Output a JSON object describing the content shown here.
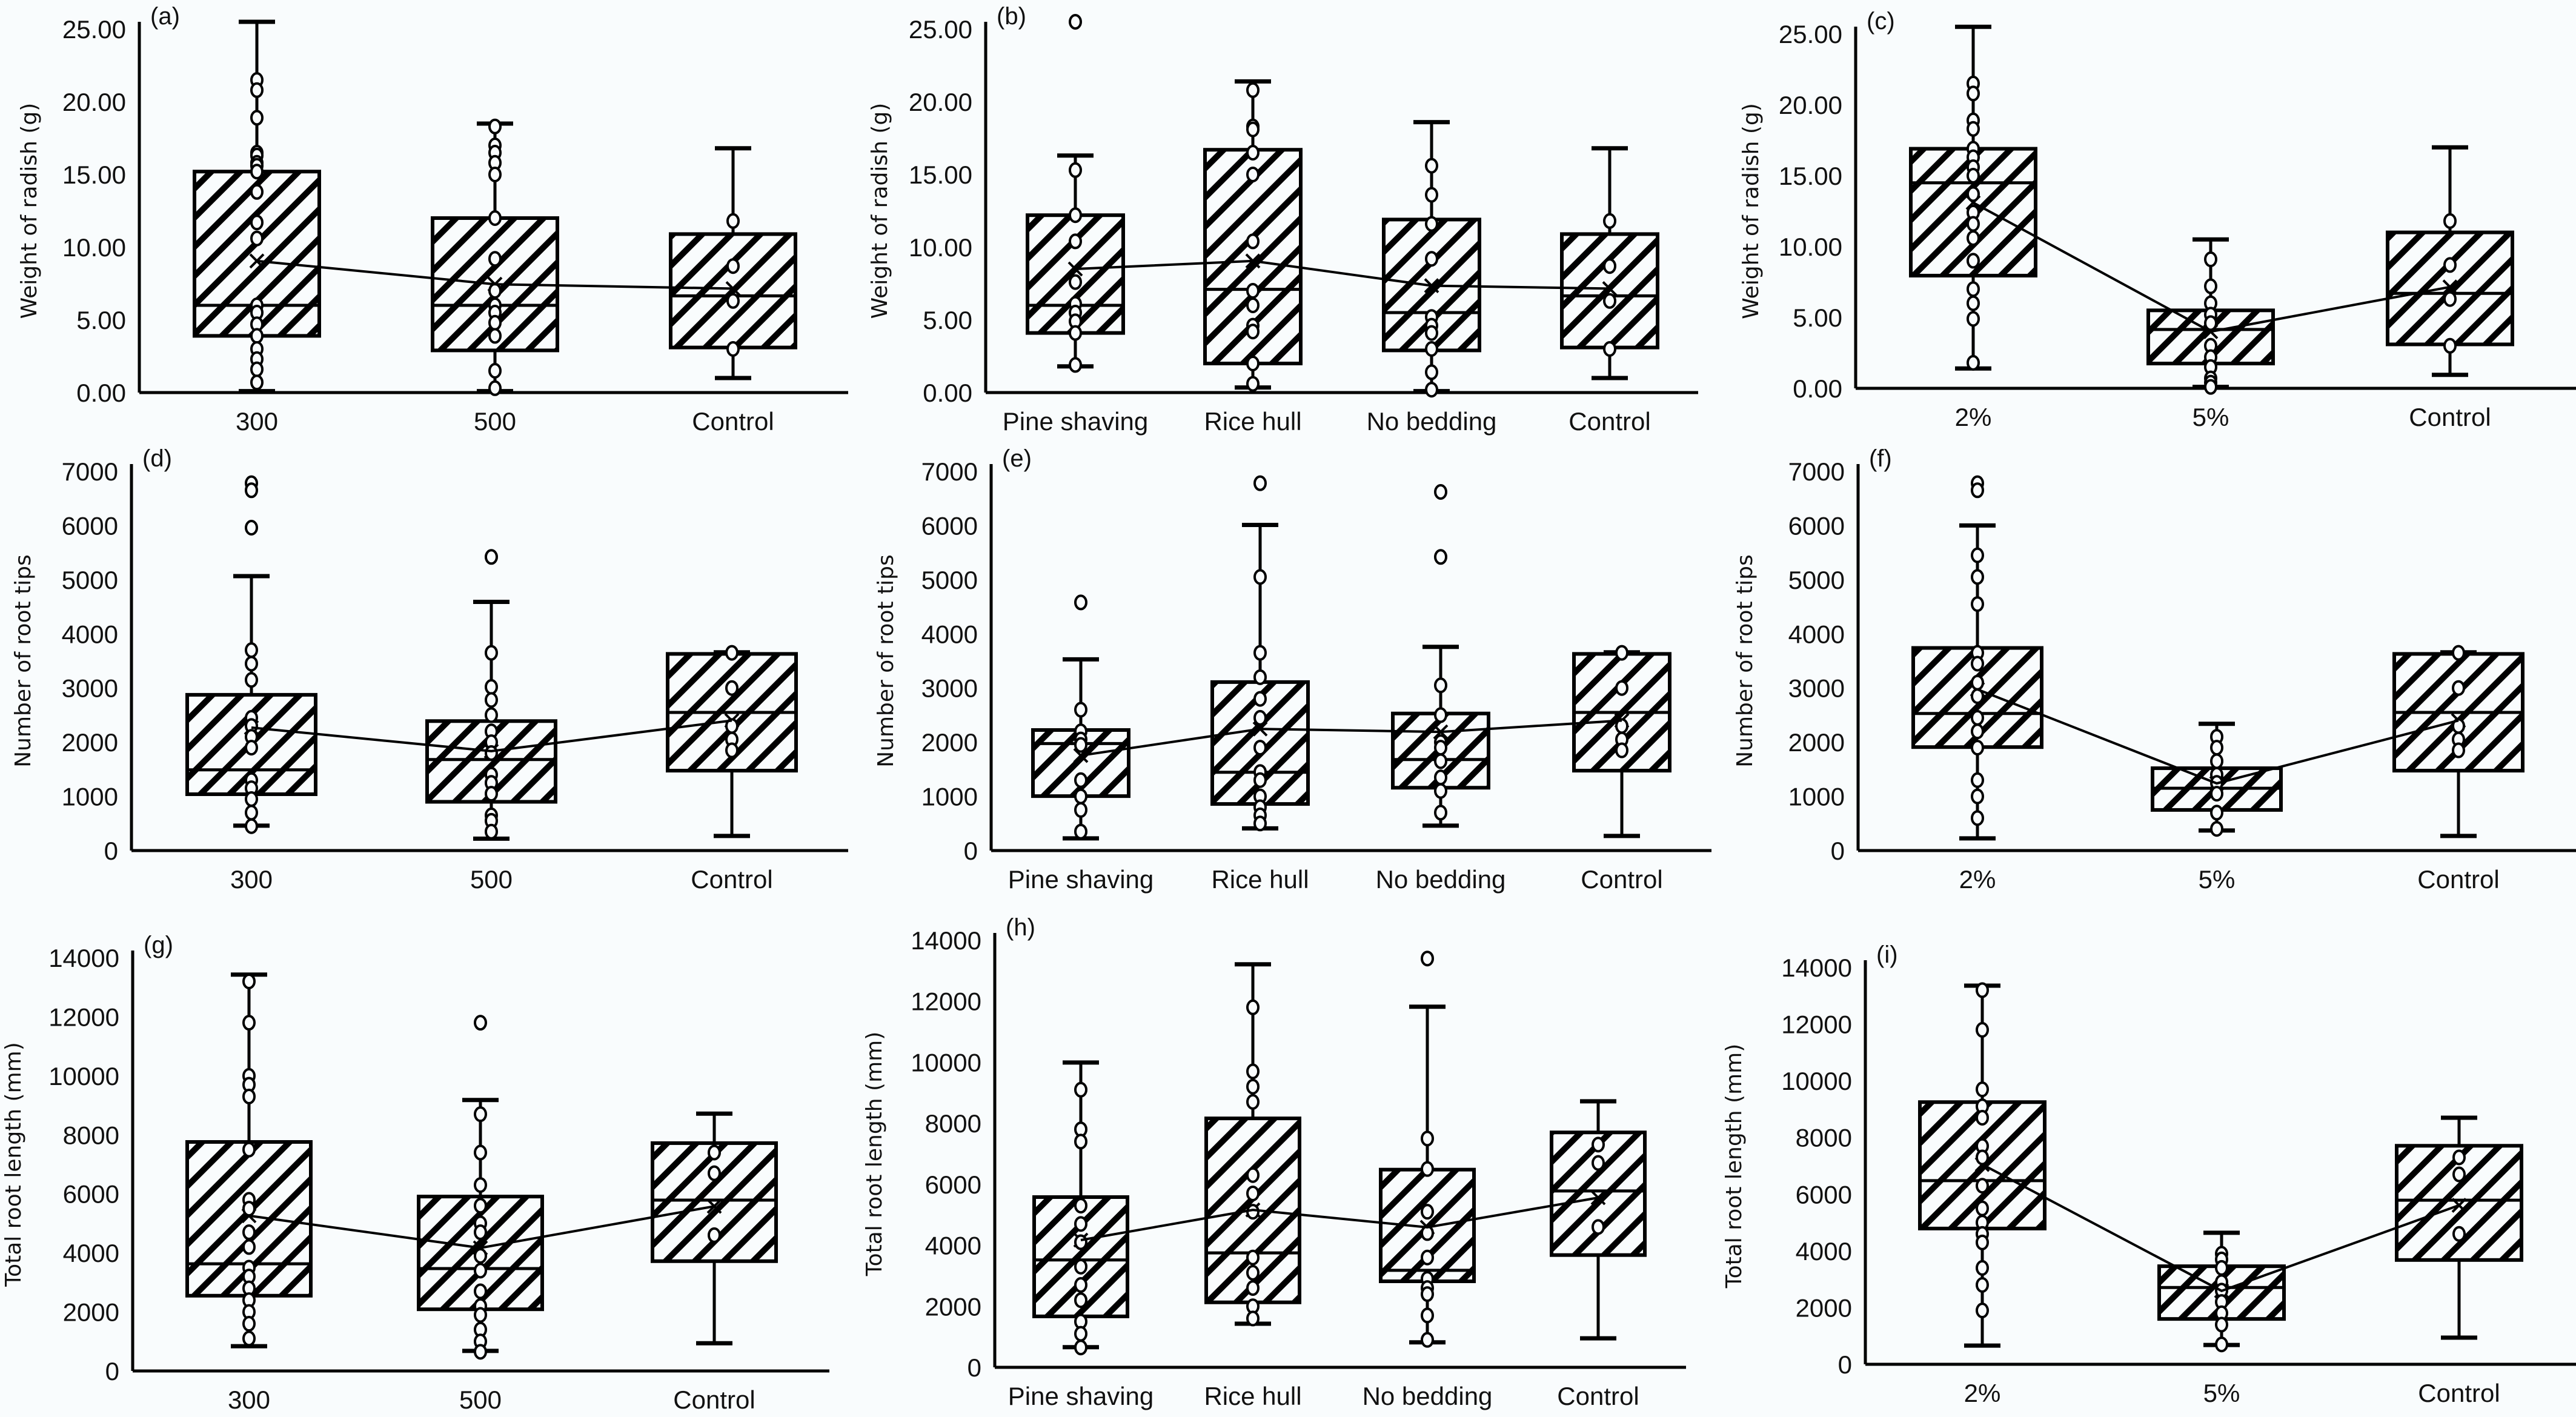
{
  "figure": {
    "background": "#f9fcfd",
    "ink": "#000000",
    "hatch": "diagonal"
  },
  "chart_data": [
    {
      "type": "box",
      "panel": "(a)",
      "ylabel": "Weight of radish (g)",
      "ylim": [
        0,
        25
      ],
      "yticks": [
        "0.00",
        "5.00",
        "10.00",
        "15.00",
        "20.00",
        "25.00"
      ],
      "categories": [
        "300",
        "500",
        "Control"
      ],
      "boxes": [
        {
          "name": "300",
          "min": 0.1,
          "q1": 3.9,
          "median": 6.0,
          "q3": 15.2,
          "max": 25.5,
          "mean": 9.05,
          "points": [
            21.5,
            20.8,
            18.9,
            16.5,
            16.3,
            15.8,
            15.6,
            15.2,
            13.8,
            11.7,
            10.6,
            6.0,
            5.5,
            4.7,
            3.9,
            3.0,
            2.3,
            1.6,
            0.7
          ],
          "outliers": []
        },
        {
          "name": "500",
          "min": 0.1,
          "q1": 2.9,
          "median": 6.0,
          "q3": 12.0,
          "max": 18.5,
          "mean": 7.45,
          "points": [
            18.3,
            17.0,
            16.5,
            15.8,
            15.0,
            12.0,
            9.2,
            7.0,
            6.0,
            5.5,
            4.8,
            3.9,
            1.5,
            0.3
          ],
          "outliers": []
        },
        {
          "name": "Control",
          "min": 1.0,
          "q1": 3.1,
          "median": 6.65,
          "q3": 10.9,
          "max": 16.8,
          "mean": 7.15,
          "points": [
            11.8,
            8.7,
            6.3,
            3.0
          ],
          "outliers": []
        }
      ]
    },
    {
      "type": "box",
      "panel": "(b)",
      "ylabel": "Weight of radish (g)",
      "ylim": [
        0,
        25
      ],
      "yticks": [
        "0.00",
        "5.00",
        "10.00",
        "15.00",
        "20.00",
        "25.00"
      ],
      "categories": [
        "Pine shaving",
        "Rice hull",
        "No bedding",
        "Control"
      ],
      "boxes": [
        {
          "name": "Pine shaving",
          "min": 1.8,
          "q1": 4.1,
          "median": 6.0,
          "q3": 12.2,
          "max": 16.3,
          "mean": 8.5,
          "points": [
            15.3,
            12.2,
            10.4,
            7.6,
            6.1,
            5.5,
            4.9,
            4.1,
            1.9
          ],
          "outliers": [
            25.5
          ]
        },
        {
          "name": "Rice hull",
          "min": 0.35,
          "q1": 2.0,
          "median": 7.1,
          "q3": 16.7,
          "max": 21.4,
          "mean": 9.05,
          "points": [
            20.8,
            18.3,
            18.1,
            16.5,
            15.0,
            10.4,
            7.0,
            6.0,
            4.6,
            4.2,
            2.0,
            0.6
          ],
          "outliers": []
        },
        {
          "name": "No bedding",
          "min": 0.1,
          "q1": 2.9,
          "median": 5.5,
          "q3": 11.9,
          "max": 18.6,
          "mean": 7.35,
          "points": [
            15.6,
            13.6,
            11.6,
            9.2,
            5.2,
            4.6,
            4.1,
            3.0,
            1.4,
            0.2
          ],
          "outliers": []
        },
        {
          "name": "Control",
          "min": 1.0,
          "q1": 3.1,
          "median": 6.65,
          "q3": 10.9,
          "max": 16.8,
          "mean": 7.15,
          "points": [
            11.8,
            8.7,
            6.3,
            3.0
          ],
          "outliers": []
        }
      ]
    },
    {
      "type": "box",
      "panel": "(c)",
      "ylabel": "Weight of radish (g)",
      "ylim": [
        0,
        25
      ],
      "yticks": [
        "0.00",
        "5.00",
        "10.00",
        "15.00",
        "20.00",
        "25.00"
      ],
      "categories": [
        "2%",
        "5%",
        "Control"
      ],
      "boxes": [
        {
          "name": "2%",
          "min": 1.4,
          "q1": 7.95,
          "median": 14.5,
          "q3": 16.9,
          "max": 25.5,
          "mean": 13.1,
          "points": [
            21.5,
            20.8,
            18.9,
            18.3,
            16.9,
            16.3,
            15.6,
            15.0,
            13.7,
            12.4,
            11.6,
            10.6,
            9.0,
            7.0,
            6.0,
            4.9,
            1.8
          ],
          "outliers": []
        },
        {
          "name": "5%",
          "min": 0.1,
          "q1": 1.75,
          "median": 4.15,
          "q3": 5.5,
          "max": 10.5,
          "mean": 4.0,
          "points": [
            9.1,
            7.2,
            6.0,
            5.2,
            4.6,
            3.0,
            2.2,
            1.5,
            0.7,
            0.4,
            0.1
          ],
          "outliers": []
        },
        {
          "name": "Control",
          "min": 0.95,
          "q1": 3.1,
          "median": 6.7,
          "q3": 11.0,
          "max": 17.0,
          "mean": 7.15,
          "points": [
            11.8,
            8.7,
            6.3,
            3.0
          ],
          "outliers": []
        }
      ]
    },
    {
      "type": "box",
      "panel": "(d)",
      "ylabel": "Number of root tips",
      "ylim": [
        0,
        7000
      ],
      "yticks": [
        "0",
        "1000",
        "2000",
        "3000",
        "4000",
        "5000",
        "6000",
        "7000"
      ],
      "categories": [
        "300",
        "500",
        "Control"
      ],
      "boxes": [
        {
          "name": "300",
          "min": 460,
          "q1": 1040,
          "median": 1490,
          "q3": 2875,
          "max": 5066,
          "mean": 2270,
          "points": [
            3700,
            3450,
            3150,
            2450,
            2300,
            2100,
            1900,
            1300,
            1150,
            950,
            700,
            450
          ],
          "outliers": [
            6780,
            6650,
            5960
          ]
        },
        {
          "name": "500",
          "min": 220,
          "q1": 900,
          "median": 1680,
          "q3": 2390,
          "max": 4590,
          "mean": 1835,
          "points": [
            3650,
            3020,
            2780,
            2500,
            2200,
            2000,
            1800,
            1400,
            1250,
            1050,
            650,
            550,
            350
          ],
          "outliers": [
            5420
          ]
        },
        {
          "name": "Control",
          "min": 270,
          "q1": 1475,
          "median": 2550,
          "q3": 3630,
          "max": 3660,
          "mean": 2400,
          "points": [
            3650,
            3000,
            2300,
            2050,
            1850
          ],
          "outliers": []
        }
      ]
    },
    {
      "type": "box",
      "panel": "(e)",
      "ylabel": "Number of root tips",
      "ylim": [
        0,
        7000
      ],
      "yticks": [
        "0",
        "1000",
        "2000",
        "3000",
        "4000",
        "5000",
        "6000",
        "7000"
      ],
      "categories": [
        "Pine shaving",
        "Rice hull",
        "No bedding",
        "Control"
      ],
      "boxes": [
        {
          "name": "Pine shaving",
          "min": 225,
          "q1": 1005,
          "median": 1975,
          "q3": 2225,
          "max": 3530,
          "mean": 1755,
          "points": [
            2600,
            2200,
            2050,
            1950,
            1300,
            1000,
            750,
            350
          ],
          "outliers": [
            4580
          ]
        },
        {
          "name": "Rice hull",
          "min": 410,
          "q1": 860,
          "median": 1445,
          "q3": 3110,
          "max": 6010,
          "mean": 2245,
          "points": [
            5050,
            3650,
            3200,
            2800,
            2450,
            1900,
            1450,
            1300,
            1000,
            800,
            650,
            500
          ],
          "outliers": [
            6780
          ]
        },
        {
          "name": "No bedding",
          "min": 460,
          "q1": 1160,
          "median": 1680,
          "q3": 2530,
          "max": 3760,
          "mean": 2190,
          "points": [
            3050,
            2500,
            2000,
            1900,
            1650,
            1350,
            1100,
            700
          ],
          "outliers": [
            6620,
            5420
          ]
        },
        {
          "name": "Control",
          "min": 270,
          "q1": 1475,
          "median": 2550,
          "q3": 3630,
          "max": 3660,
          "mean": 2400,
          "points": [
            3650,
            3000,
            2300,
            2050,
            1850
          ],
          "outliers": []
        }
      ]
    },
    {
      "type": "box",
      "panel": "(f)",
      "ylabel": "Number of root tips",
      "ylim": [
        0,
        7000
      ],
      "yticks": [
        "0",
        "1000",
        "2000",
        "3000",
        "4000",
        "5000",
        "6000",
        "7000"
      ],
      "categories": [
        "2%",
        "5%",
        "Control"
      ],
      "boxes": [
        {
          "name": "2%",
          "min": 225,
          "q1": 1910,
          "median": 2530,
          "q3": 3740,
          "max": 6000,
          "mean": 2975,
          "points": [
            5450,
            5050,
            4550,
            3650,
            3450,
            3100,
            2850,
            2450,
            2200,
            1900,
            1300,
            1000,
            600
          ],
          "outliers": [
            6780,
            6650
          ]
        },
        {
          "name": "5%",
          "min": 370,
          "q1": 750,
          "median": 1150,
          "q3": 1520,
          "max": 2340,
          "mean": 1240,
          "points": [
            2100,
            1900,
            1650,
            1400,
            1250,
            1050,
            700,
            400
          ],
          "outliers": []
        },
        {
          "name": "Control",
          "min": 270,
          "q1": 1475,
          "median": 2550,
          "q3": 3630,
          "max": 3660,
          "mean": 2400,
          "points": [
            3650,
            3000,
            2300,
            2050,
            1850
          ],
          "outliers": []
        }
      ]
    },
    {
      "type": "box",
      "panel": "(g)",
      "ylabel": "Total root length (mm)",
      "ylim": [
        0,
        14000
      ],
      "yticks": [
        "0",
        "2000",
        "4000",
        "6000",
        "8000",
        "10000",
        "12000",
        "14000"
      ],
      "categories": [
        "300",
        "500",
        "Control"
      ],
      "boxes": [
        {
          "name": "300",
          "min": 840,
          "q1": 2550,
          "median": 3630,
          "q3": 7760,
          "max": 13430,
          "mean": 5260,
          "points": [
            13200,
            11800,
            10000,
            9700,
            9300,
            7500,
            5800,
            5500,
            4700,
            4200,
            3500,
            3200,
            2800,
            2400,
            2000,
            1600,
            1100
          ],
          "outliers": []
        },
        {
          "name": "500",
          "min": 680,
          "q1": 2090,
          "median": 3470,
          "q3": 5910,
          "max": 9180,
          "mean": 4170,
          "points": [
            8700,
            7400,
            6300,
            5600,
            5000,
            4700,
            3900,
            3400,
            2700,
            2200,
            1900,
            1400,
            1000,
            650
          ],
          "outliers": [
            11800
          ]
        },
        {
          "name": "Control",
          "min": 940,
          "q1": 3720,
          "median": 5790,
          "q3": 7720,
          "max": 8720,
          "mean": 5580,
          "points": [
            7400,
            6700,
            4600
          ],
          "outliers": []
        }
      ]
    },
    {
      "type": "box",
      "panel": "(h)",
      "ylabel": "Total root length (mm)",
      "ylim": [
        0,
        14000
      ],
      "yticks": [
        "0",
        "2000",
        "4000",
        "6000",
        "8000",
        "10000",
        "12000",
        "14000"
      ],
      "categories": [
        "Pine shaving",
        "Rice hull",
        "No bedding",
        "Control"
      ],
      "boxes": [
        {
          "name": "Pine shaving",
          "min": 660,
          "q1": 1670,
          "median": 3520,
          "q3": 5580,
          "max": 9990,
          "mean": 4170,
          "points": [
            9100,
            7800,
            7400,
            5300,
            4700,
            4100,
            3300,
            2700,
            2200,
            1500,
            1100,
            650
          ],
          "outliers": []
        },
        {
          "name": "Rice hull",
          "min": 1430,
          "q1": 2130,
          "median": 3750,
          "q3": 8160,
          "max": 13210,
          "mean": 5160,
          "points": [
            11800,
            9700,
            9200,
            8700,
            6300,
            5700,
            5100,
            3600,
            3100,
            2600,
            2000,
            1600
          ],
          "outliers": []
        },
        {
          "name": "No bedding",
          "min": 820,
          "q1": 2820,
          "median": 3180,
          "q3": 6480,
          "max": 11820,
          "mean": 4590,
          "points": [
            7500,
            6500,
            5100,
            4400,
            3600,
            2900,
            2600,
            2400,
            1700,
            900
          ],
          "outliers": [
            13400
          ]
        },
        {
          "name": "Control",
          "min": 950,
          "q1": 3680,
          "median": 5780,
          "q3": 7700,
          "max": 8720,
          "mean": 5560,
          "points": [
            7300,
            6700,
            4600
          ],
          "outliers": []
        }
      ]
    },
    {
      "type": "box",
      "panel": "(i)",
      "ylabel": "Total root length (mm)",
      "ylim": [
        0,
        14000
      ],
      "yticks": [
        "0",
        "2000",
        "4000",
        "6000",
        "8000",
        "10000",
        "12000",
        "14000"
      ],
      "categories": [
        "2%",
        "5%",
        "Control"
      ],
      "boxes": [
        {
          "name": "2%",
          "min": 660,
          "q1": 4790,
          "median": 6480,
          "q3": 9250,
          "max": 13360,
          "mean": 7050,
          "points": [
            13200,
            11800,
            9700,
            9100,
            8700,
            7700,
            7300,
            6300,
            5500,
            5000,
            4600,
            4300,
            3400,
            2800,
            1900
          ],
          "outliers": []
        },
        {
          "name": "5%",
          "min": 680,
          "q1": 1600,
          "median": 2710,
          "q3": 3460,
          "max": 4640,
          "mean": 2590,
          "points": [
            3900,
            3700,
            3400,
            2900,
            2600,
            2200,
            1800,
            1400,
            700
          ],
          "outliers": []
        },
        {
          "name": "Control",
          "min": 940,
          "q1": 3680,
          "median": 5790,
          "q3": 7710,
          "max": 8700,
          "mean": 5610,
          "points": [
            7300,
            6700,
            4600
          ],
          "outliers": []
        }
      ]
    }
  ]
}
